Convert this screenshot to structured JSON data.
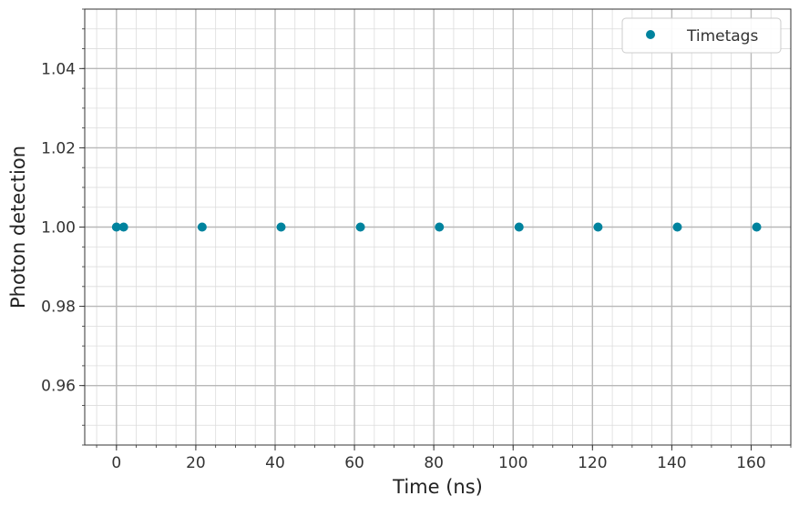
{
  "chart_data": {
    "type": "scatter",
    "xlabel": "Time (ns)",
    "ylabel": "Photon detection",
    "xlim": [
      -8,
      170
    ],
    "ylim": [
      0.945,
      1.055
    ],
    "x_ticks": [
      0,
      20,
      40,
      60,
      80,
      100,
      120,
      140,
      160
    ],
    "x_tick_labels": [
      "0",
      "20",
      "40",
      "60",
      "80",
      "100",
      "120",
      "140",
      "160"
    ],
    "y_ticks": [
      0.96,
      0.98,
      1.0,
      1.02,
      1.04
    ],
    "y_tick_labels": [
      "0.96",
      "0.98",
      "1.00",
      "1.02",
      "1.04"
    ],
    "x_minor_step": 5,
    "y_minor_step": 0.005,
    "grid": true,
    "grid_minor": true,
    "legend_position": "top-right",
    "series": [
      {
        "name": "Timetags",
        "color": "#00839e",
        "marker": "circle",
        "points": [
          {
            "x": 0,
            "y": 1.0
          },
          {
            "x": 1.8,
            "y": 1.0
          },
          {
            "x": 21.6,
            "y": 1.0
          },
          {
            "x": 41.5,
            "y": 1.0
          },
          {
            "x": 61.5,
            "y": 1.0
          },
          {
            "x": 81.4,
            "y": 1.0
          },
          {
            "x": 101.5,
            "y": 1.0
          },
          {
            "x": 121.4,
            "y": 1.0
          },
          {
            "x": 141.4,
            "y": 1.0
          },
          {
            "x": 161.4,
            "y": 1.0
          }
        ]
      }
    ]
  }
}
